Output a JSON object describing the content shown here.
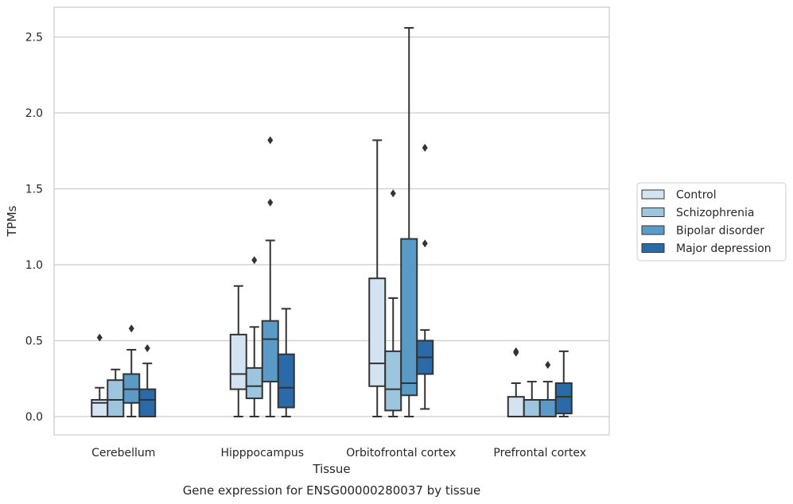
{
  "chart_data": {
    "type": "box",
    "title": "Gene expression for ENSG00000280037 by tissue",
    "xlabel": "Tissue",
    "ylabel": "TPMs",
    "ylim": [
      -0.12,
      2.69
    ],
    "yticks": [
      0.0,
      0.5,
      1.0,
      1.5,
      2.0,
      2.5
    ],
    "ytick_labels": [
      "0.0",
      "0.5",
      "1.0",
      "1.5",
      "2.0",
      "2.5"
    ],
    "categories": [
      "Cerebellum",
      "Hipppocampus",
      "Orbitofrontal cortex",
      "Prefrontal cortex"
    ],
    "grid": true,
    "legend_position": "right",
    "series": [
      {
        "name": "Control",
        "color": "#d3e3f1",
        "boxes": [
          {
            "whislo": 0.0,
            "q1": 0.0,
            "med": 0.09,
            "q3": 0.11,
            "whishi": 0.19,
            "fliers": [
              0.52
            ]
          },
          {
            "whislo": 0.0,
            "q1": 0.18,
            "med": 0.28,
            "q3": 0.54,
            "whishi": 0.86,
            "fliers": []
          },
          {
            "whislo": 0.0,
            "q1": 0.2,
            "med": 0.35,
            "q3": 0.91,
            "whishi": 1.82,
            "fliers": []
          },
          {
            "whislo": 0.0,
            "q1": 0.0,
            "med": 0.0,
            "q3": 0.13,
            "whishi": 0.22,
            "fliers": [
              0.42,
              0.43
            ]
          }
        ]
      },
      {
        "name": "Schizophrenia",
        "color": "#9dc5de",
        "boxes": [
          {
            "whislo": 0.0,
            "q1": 0.0,
            "med": 0.11,
            "q3": 0.24,
            "whishi": 0.31,
            "fliers": []
          },
          {
            "whislo": 0.0,
            "q1": 0.12,
            "med": 0.2,
            "q3": 0.32,
            "whishi": 0.59,
            "fliers": [
              1.03
            ]
          },
          {
            "whislo": 0.0,
            "q1": 0.04,
            "med": 0.18,
            "q3": 0.43,
            "whishi": 0.78,
            "fliers": [
              1.47
            ]
          },
          {
            "whislo": 0.0,
            "q1": 0.0,
            "med": 0.0,
            "q3": 0.11,
            "whishi": 0.23,
            "fliers": []
          }
        ]
      },
      {
        "name": "Bipolar disorder",
        "color": "#5a9ac6",
        "boxes": [
          {
            "whislo": 0.0,
            "q1": 0.09,
            "med": 0.18,
            "q3": 0.28,
            "whishi": 0.44,
            "fliers": [
              0.58
            ]
          },
          {
            "whislo": 0.0,
            "q1": 0.23,
            "med": 0.51,
            "q3": 0.63,
            "whishi": 1.16,
            "fliers": [
              1.41,
              1.82
            ]
          },
          {
            "whislo": 0.0,
            "q1": 0.14,
            "med": 0.22,
            "q3": 1.17,
            "whishi": 2.56,
            "fliers": []
          },
          {
            "whislo": 0.0,
            "q1": 0.0,
            "med": 0.0,
            "q3": 0.11,
            "whishi": 0.23,
            "fliers": [
              0.34
            ]
          }
        ]
      },
      {
        "name": "Major depression",
        "color": "#2a6aa8",
        "boxes": [
          {
            "whislo": 0.0,
            "q1": 0.0,
            "med": 0.11,
            "q3": 0.18,
            "whishi": 0.35,
            "fliers": [
              0.45
            ]
          },
          {
            "whislo": 0.0,
            "q1": 0.06,
            "med": 0.19,
            "q3": 0.41,
            "whishi": 0.71,
            "fliers": []
          },
          {
            "whislo": 0.05,
            "q1": 0.28,
            "med": 0.39,
            "q3": 0.5,
            "whishi": 0.57,
            "fliers": [
              1.14,
              1.77
            ]
          },
          {
            "whislo": 0.0,
            "q1": 0.02,
            "med": 0.13,
            "q3": 0.22,
            "whishi": 0.43,
            "fliers": []
          }
        ]
      }
    ]
  }
}
